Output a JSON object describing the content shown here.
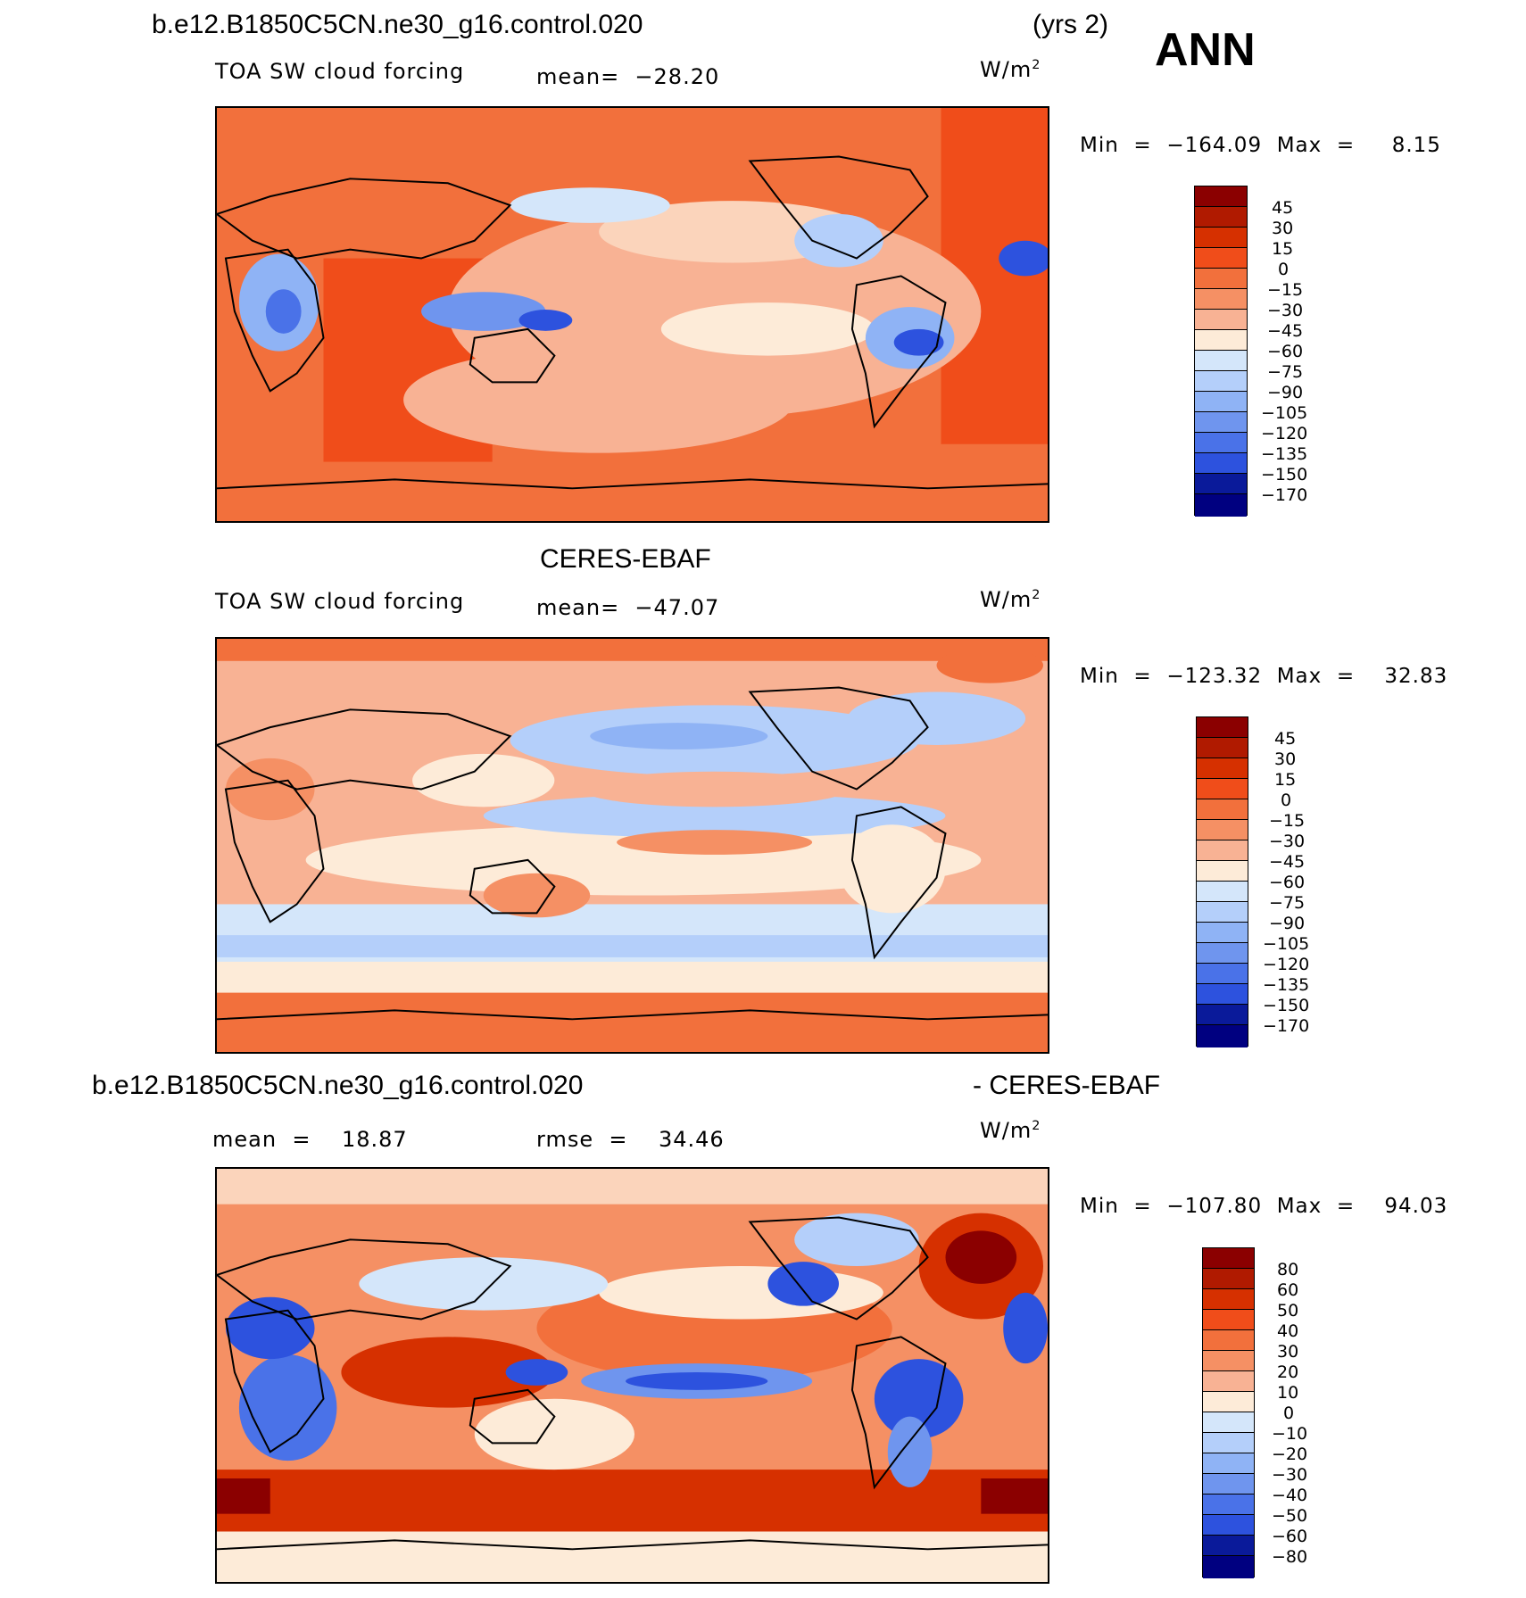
{
  "header": {
    "case_name": "b.e12.B1850C5CN.ne30_g16.control.020",
    "years": "(yrs 2)",
    "season": "ANN"
  },
  "panels": [
    {
      "id": "model",
      "title": "",
      "variable": "TOA SW cloud forcing",
      "mean_label": "mean=  −28.20",
      "units": "W/m",
      "units_sup": "2",
      "minmax": "Min  =  −164.09  Max  =     8.15",
      "levels": [
        "45",
        "30",
        "15",
        "0",
        "−15",
        "−30",
        "−45",
        "−60",
        "−75",
        "−90",
        "−105",
        "−120",
        "−135",
        "−150",
        "−170"
      ],
      "colors": [
        "#8b0000",
        "#b01a00",
        "#d63000",
        "#f04d1a",
        "#f2703c",
        "#f59064",
        "#f8b294",
        "#fbd4bb",
        "#fdebd8",
        "#d4e6fa",
        "#b4cffa",
        "#8fb3f5",
        "#6f95ee",
        "#4a72e8",
        "#2d52de",
        "#1535c9",
        "#0a1a9a",
        "#000080"
      ]
    },
    {
      "id": "obs",
      "title": "CERES-EBAF",
      "variable": "TOA SW cloud forcing",
      "mean_label": "mean=  −47.07",
      "units": "W/m",
      "units_sup": "2",
      "minmax": "Min  =  −123.32  Max  =    32.83",
      "levels": [
        "45",
        "30",
        "15",
        "0",
        "−15",
        "−30",
        "−45",
        "−60",
        "−75",
        "−90",
        "−105",
        "−120",
        "−135",
        "−150",
        "−170"
      ]
    },
    {
      "id": "diff",
      "title_left": "b.e12.B1850C5CN.ne30_g16.control.020",
      "title_right": "- CERES-EBAF",
      "mean_label": "mean  =    18.87",
      "rmse_label": "rmse  =    34.46",
      "units": "W/m",
      "units_sup": "2",
      "minmax": "Min  =  −107.80  Max  =    94.03",
      "levels": [
        "80",
        "60",
        "50",
        "40",
        "30",
        "20",
        "10",
        "0",
        "−10",
        "−20",
        "−30",
        "−40",
        "−50",
        "−60",
        "−80"
      ]
    }
  ],
  "palette": {
    "red_dark": "#8b0000",
    "red": "#f04d1a",
    "orange": "#f2703c",
    "salmon": "#f8b294",
    "peach": "#fdebd8",
    "ice": "#d4e6fa",
    "blue": "#4a72e8",
    "navy": "#000080"
  }
}
